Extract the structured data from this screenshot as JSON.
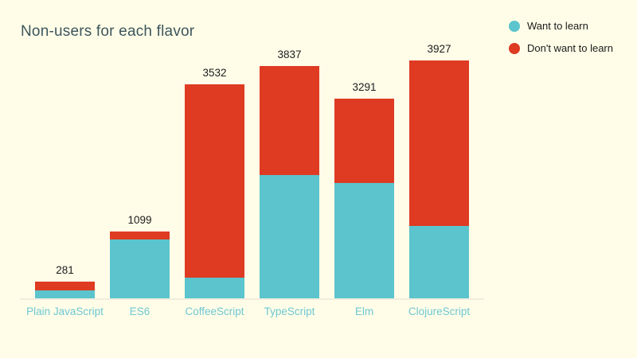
{
  "page": {
    "background": "#FFFDE8"
  },
  "legend": {
    "items": [
      {
        "label": "Want to learn",
        "color": "#5BC4CC"
      },
      {
        "label": "Don't want to learn",
        "color": "#DE3B22"
      }
    ]
  },
  "chart_data": {
    "type": "bar",
    "stacked": true,
    "title": "Non-users for each flavor",
    "categories": [
      "Plain JavaScript",
      "ES6",
      "CoffeeScript",
      "TypeScript",
      "Elm",
      "ClojureScript"
    ],
    "series": [
      {
        "name": "Want to learn",
        "color": "#5BC4CC",
        "values": [
          134,
          968,
          345,
          2042,
          1908,
          1192
        ]
      },
      {
        "name": "Don't want to learn",
        "color": "#DE3B22",
        "values": [
          147,
          131,
          3187,
          1795,
          1383,
          2735
        ]
      }
    ],
    "totals": [
      281,
      1099,
      3532,
      3837,
      3291,
      3927
    ],
    "total_labels_shown": true,
    "xlabel": "",
    "ylabel": "",
    "ylim": [
      0,
      3927
    ],
    "grid": false,
    "y_axis_shown": false,
    "legend_position": "top-right",
    "colors": {
      "background": "#FFFDE8",
      "title_text": "#3D565C",
      "category_text": "#6FC7D2",
      "value_text": "#1C1C1C",
      "axis_line": "#F0EDDE"
    }
  }
}
